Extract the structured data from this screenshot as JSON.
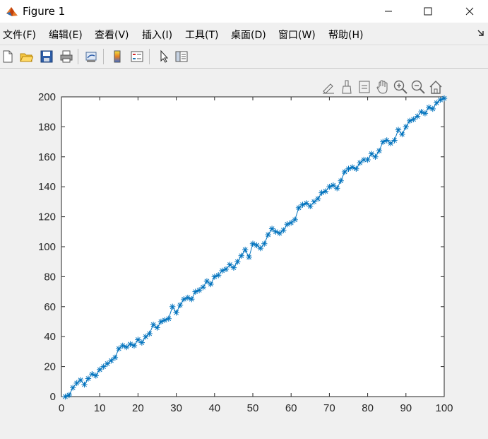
{
  "window": {
    "title": "Figure 1",
    "icon": "matlab-icon"
  },
  "menu": {
    "items": [
      {
        "label": "文件(F)"
      },
      {
        "label": "编辑(E)"
      },
      {
        "label": "查看(V)"
      },
      {
        "label": "插入(I)"
      },
      {
        "label": "工具(T)"
      },
      {
        "label": "桌面(D)"
      },
      {
        "label": "窗口(W)"
      },
      {
        "label": "帮助(H)"
      }
    ]
  },
  "toolbar": {
    "icons": [
      "new-figure-icon",
      "open-file-icon",
      "save-icon",
      "print-icon",
      "link-plot-icon",
      "colorbar-icon",
      "legend-icon",
      "select-pointer-icon",
      "property-inspector-icon"
    ]
  },
  "axes_toolbar": {
    "icons": [
      "edit-plot-icon",
      "brush-icon",
      "data-tips-icon",
      "pan-icon",
      "zoom-in-icon",
      "zoom-out-icon",
      "home-icon"
    ]
  },
  "chart_data": {
    "type": "line",
    "marker": "asterisk",
    "color": "#0072bd",
    "xlim": [
      0,
      100
    ],
    "ylim": [
      0,
      200
    ],
    "xticks": [
      0,
      10,
      20,
      30,
      40,
      50,
      60,
      70,
      80,
      90,
      100
    ],
    "yticks": [
      0,
      20,
      40,
      60,
      80,
      100,
      120,
      140,
      160,
      180,
      200
    ],
    "grid": false,
    "title": "",
    "xlabel": "",
    "ylabel": "",
    "x": [
      1,
      2,
      3,
      4,
      5,
      6,
      7,
      8,
      9,
      10,
      11,
      12,
      13,
      14,
      15,
      16,
      17,
      18,
      19,
      20,
      21,
      22,
      23,
      24,
      25,
      26,
      27,
      28,
      29,
      30,
      31,
      32,
      33,
      34,
      35,
      36,
      37,
      38,
      39,
      40,
      41,
      42,
      43,
      44,
      45,
      46,
      47,
      48,
      49,
      50,
      51,
      52,
      53,
      54,
      55,
      56,
      57,
      58,
      59,
      60,
      61,
      62,
      63,
      64,
      65,
      66,
      67,
      68,
      69,
      70,
      71,
      72,
      73,
      74,
      75,
      76,
      77,
      78,
      79,
      80,
      81,
      82,
      83,
      84,
      85,
      86,
      87,
      88,
      89,
      90,
      91,
      92,
      93,
      94,
      95,
      96,
      97,
      98,
      99,
      100
    ],
    "y": [
      0,
      1,
      6,
      9,
      11,
      8,
      12,
      15,
      14,
      18,
      20,
      22,
      24,
      26,
      32,
      34,
      33,
      35,
      34,
      38,
      36,
      40,
      42,
      48,
      46,
      50,
      51,
      52,
      60,
      56,
      61,
      65,
      66,
      65,
      70,
      71,
      73,
      77,
      75,
      80,
      81,
      84,
      85,
      88,
      86,
      90,
      94,
      98,
      93,
      102,
      101,
      99,
      102,
      108,
      112,
      110,
      109,
      111,
      115,
      116,
      118,
      126,
      128,
      129,
      127,
      130,
      132,
      136,
      137,
      140,
      141,
      139,
      144,
      150,
      152,
      153,
      152,
      156,
      158,
      158,
      162,
      160,
      164,
      170,
      171,
      169,
      171,
      178,
      175,
      180,
      184,
      185,
      187,
      190,
      189,
      193,
      192,
      196,
      198,
      199
    ]
  }
}
